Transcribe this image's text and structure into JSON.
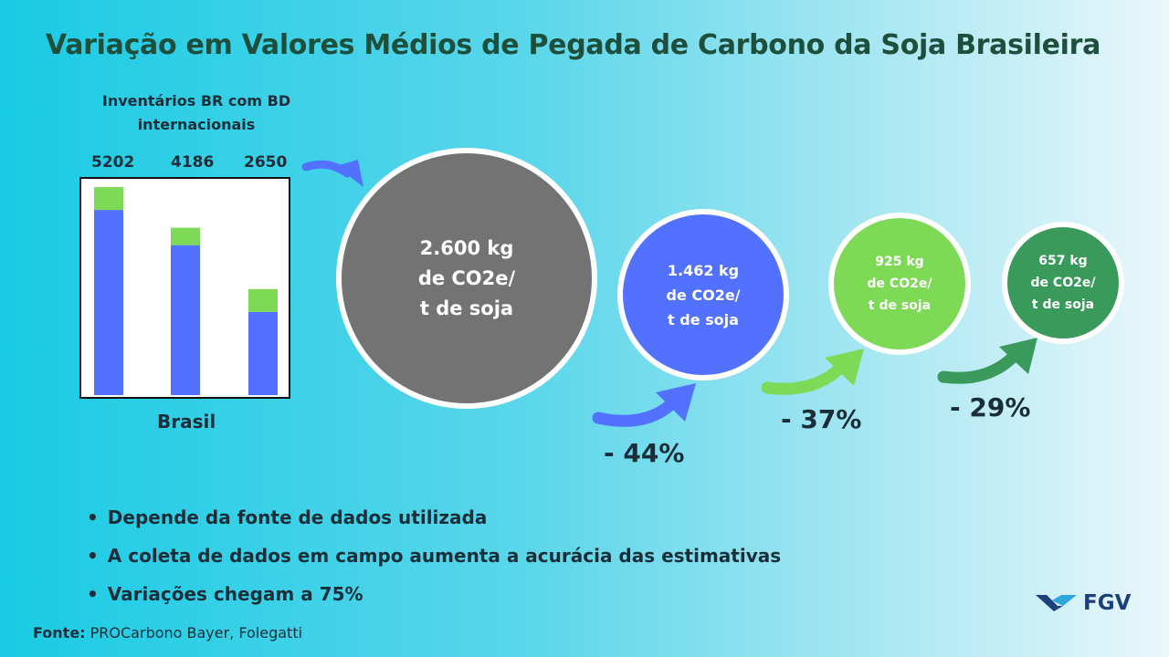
{
  "title": "Variação em Valores Médios de Pegada de Carbono da Soja Brasileira",
  "inventory_label": "Inventários BR com BD internacionais",
  "chart_data": {
    "type": "bar",
    "stacked": true,
    "categories": [
      "5202",
      "4186",
      "2650"
    ],
    "totals": [
      5202,
      4186,
      2650
    ],
    "series": [
      {
        "name": "base",
        "color": "#5271ff",
        "values": [
          4630,
          3750,
          2080
        ]
      },
      {
        "name": "top",
        "color": "#7ed957",
        "values": [
          572,
          436,
          570
        ]
      }
    ],
    "xlabel": "Brasil",
    "ylim": [
      0,
      5500
    ]
  },
  "circles": [
    {
      "line1": "2.600 kg",
      "line2": "de CO2e/",
      "line3": "t de soja",
      "color": "#737373"
    },
    {
      "line1": "1.462 kg",
      "line2": "de CO2e/",
      "line3": "t de soja",
      "color": "#5271ff"
    },
    {
      "line1": "925  kg",
      "line2": "de CO2e/",
      "line3": "t de soja",
      "color": "#7ed957"
    },
    {
      "line1": "657  kg",
      "line2": "de CO2e/",
      "line3": "t de soja",
      "color": "#3a9a5c"
    }
  ],
  "reductions": [
    "- 44%",
    "- 37%",
    "- 29%"
  ],
  "bullets": [
    "Depende da fonte de dados utilizada",
    "A coleta de dados em campo aumenta a acurácia das estimativas",
    "Variações chegam a 75%"
  ],
  "source_label": "Fonte:",
  "source_text": " PROCarbono Bayer, Folegatti",
  "logo_text": "FGV"
}
